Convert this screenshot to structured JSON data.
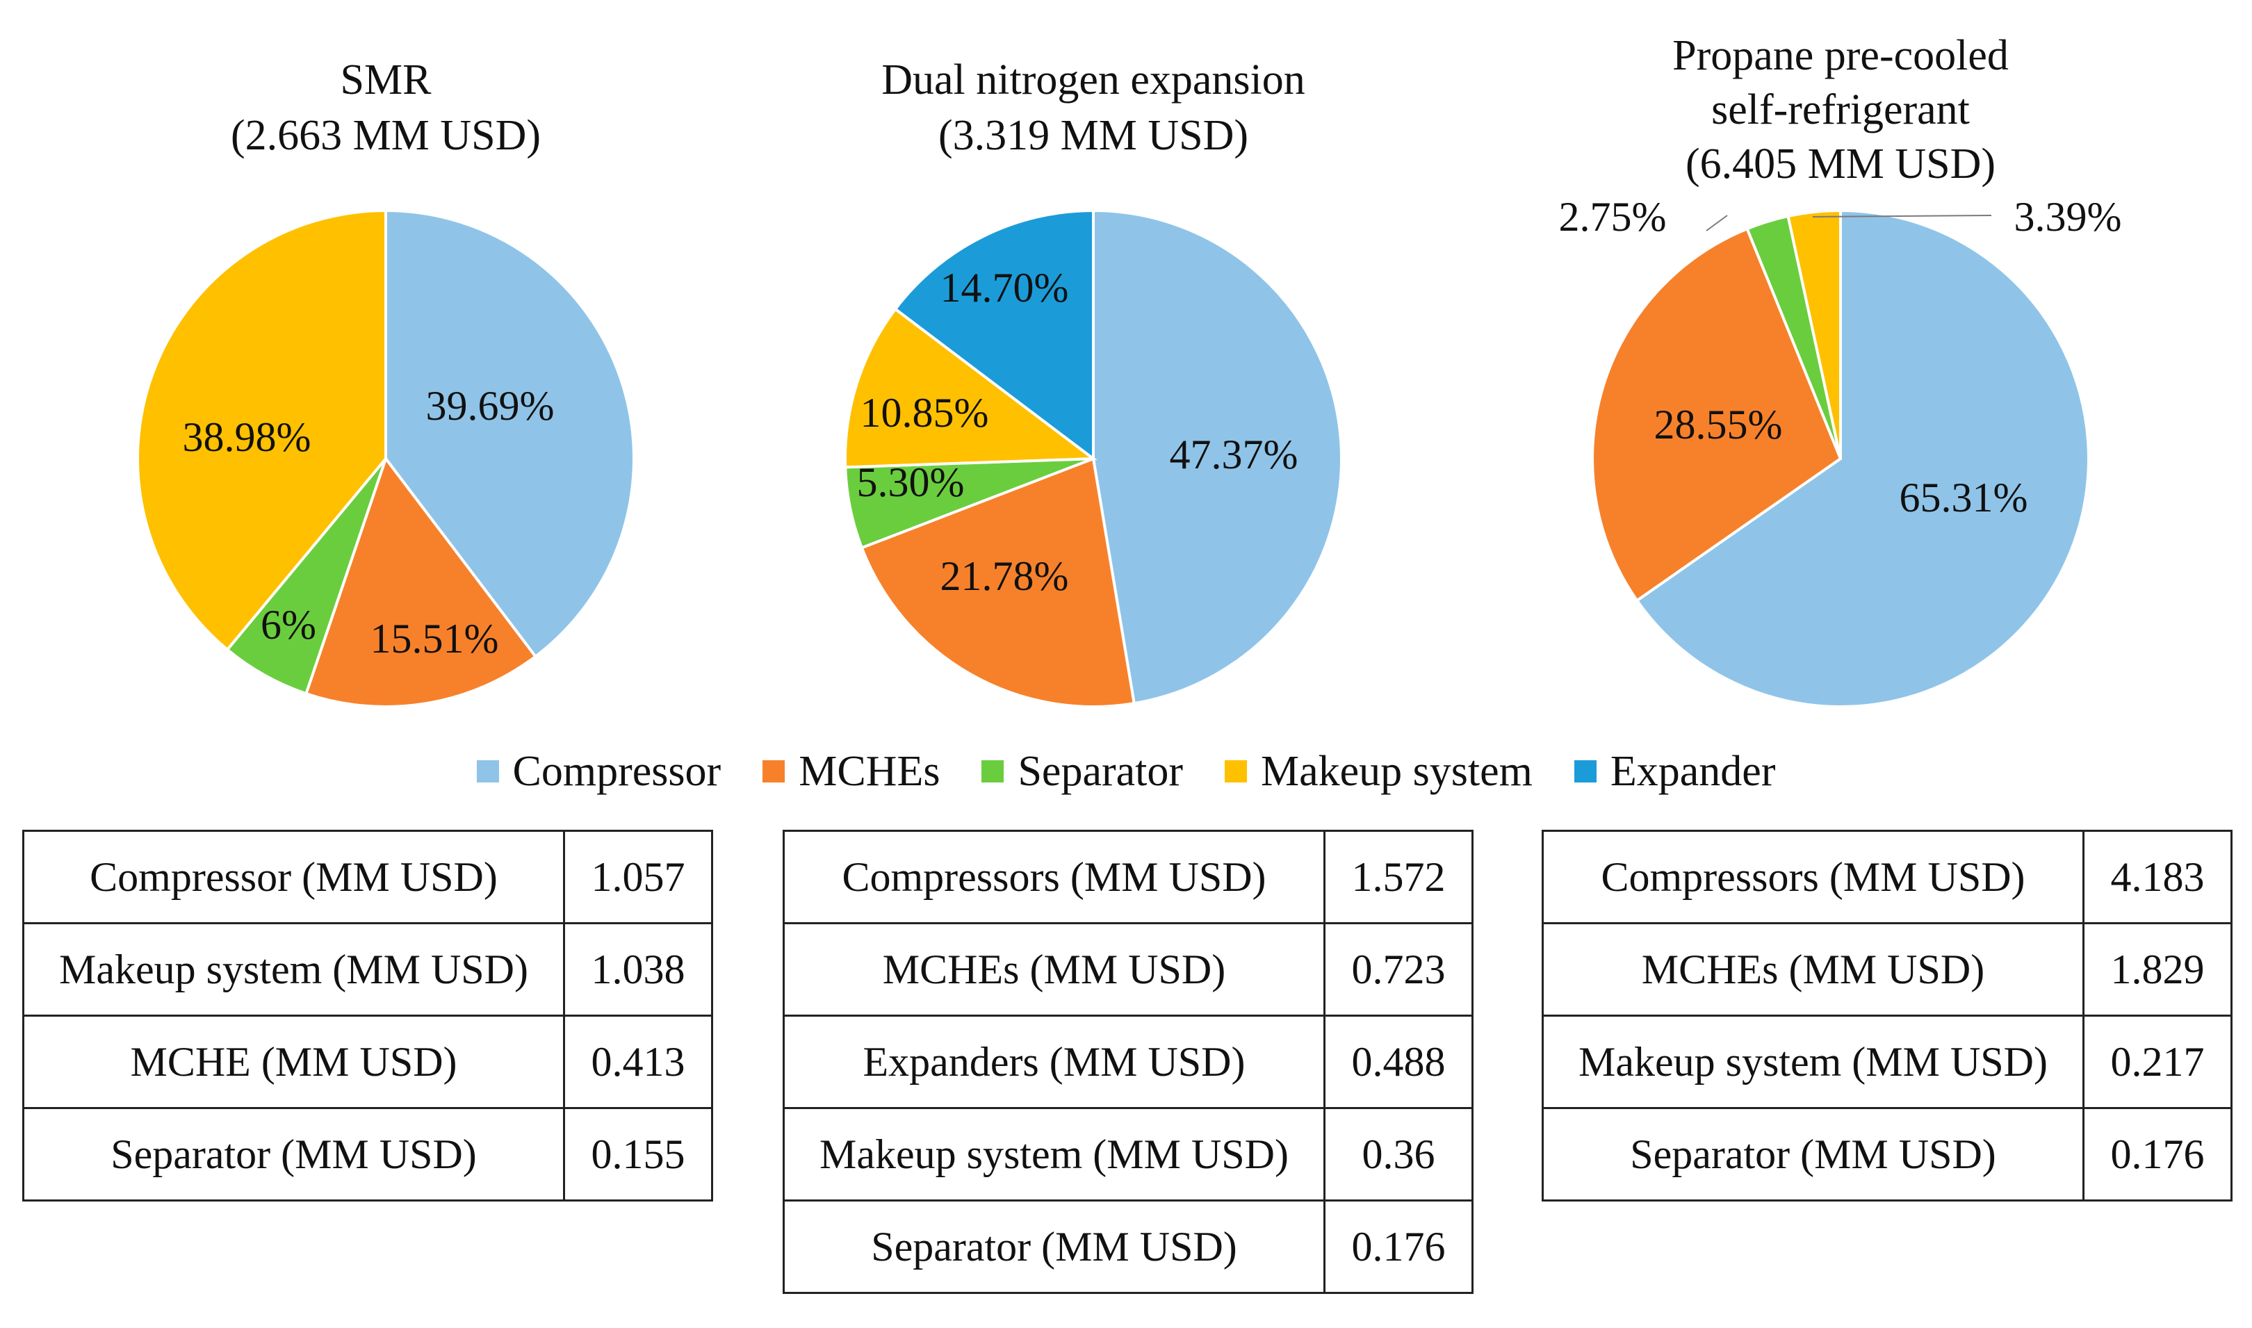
{
  "colors": {
    "Compressor": "#8fc4e8",
    "MCHEs": "#f7812b",
    "Separator": "#6acd3e",
    "Makeup system": "#ffc000",
    "Expander": "#1b9cd9"
  },
  "legend": [
    "Compressor",
    "MCHEs",
    "Separator",
    "Makeup system",
    "Expander"
  ],
  "chart_data": [
    {
      "type": "pie",
      "title_lines": [
        "SMR",
        "(2.663 MM USD)"
      ],
      "slices": [
        {
          "category": "Compressor",
          "value": 39.69,
          "label": "39.69%"
        },
        {
          "category": "MCHEs",
          "value": 15.51,
          "label": "15.51%"
        },
        {
          "category": "Separator",
          "value": 5.82,
          "label": "6%"
        },
        {
          "category": "Makeup system",
          "value": 38.98,
          "label": "38.98%"
        }
      ]
    },
    {
      "type": "pie",
      "title_lines": [
        "Dual nitrogen expansion",
        "(3.319 MM USD)"
      ],
      "slices": [
        {
          "category": "Compressor",
          "value": 47.37,
          "label": "47.37%"
        },
        {
          "category": "MCHEs",
          "value": 21.78,
          "label": "21.78%"
        },
        {
          "category": "Separator",
          "value": 5.3,
          "label": "5.30%"
        },
        {
          "category": "Makeup system",
          "value": 10.85,
          "label": "10.85%"
        },
        {
          "category": "Expander",
          "value": 14.7,
          "label": "14.70%"
        }
      ]
    },
    {
      "type": "pie",
      "title_lines": [
        "Propane pre-cooled",
        "self-refrigerant",
        "(6.405 MM USD)"
      ],
      "slices": [
        {
          "category": "Compressor",
          "value": 65.31,
          "label": "65.31%"
        },
        {
          "category": "MCHEs",
          "value": 28.55,
          "label": "28.55%"
        },
        {
          "category": "Separator",
          "value": 2.75,
          "label": "2.75%"
        },
        {
          "category": "Makeup system",
          "value": 3.39,
          "label": "3.39%"
        }
      ]
    }
  ],
  "tables": {
    "smr": [
      {
        "label": "Compressor (MM USD)",
        "value": "1.057"
      },
      {
        "label": "Makeup system (MM USD)",
        "value": "1.038"
      },
      {
        "label": "MCHE (MM USD)",
        "value": "0.413"
      },
      {
        "label": "Separator (MM USD)",
        "value": "0.155"
      }
    ],
    "dne": [
      {
        "label": "Compressors (MM USD)",
        "value": "1.572"
      },
      {
        "label": "MCHEs (MM USD)",
        "value": "0.723"
      },
      {
        "label": "Expanders (MM USD)",
        "value": "0.488"
      },
      {
        "label": "Makeup system (MM USD)",
        "value": "0.36"
      },
      {
        "label": "Separator (MM USD)",
        "value": "0.176"
      }
    ],
    "pps": [
      {
        "label": "Compressors (MM USD)",
        "value": "4.183"
      },
      {
        "label": "MCHEs (MM USD)",
        "value": "1.829"
      },
      {
        "label": "Makeup system (MM USD)",
        "value": "0.217"
      },
      {
        "label": "Separator (MM USD)",
        "value": "0.176"
      }
    ]
  }
}
